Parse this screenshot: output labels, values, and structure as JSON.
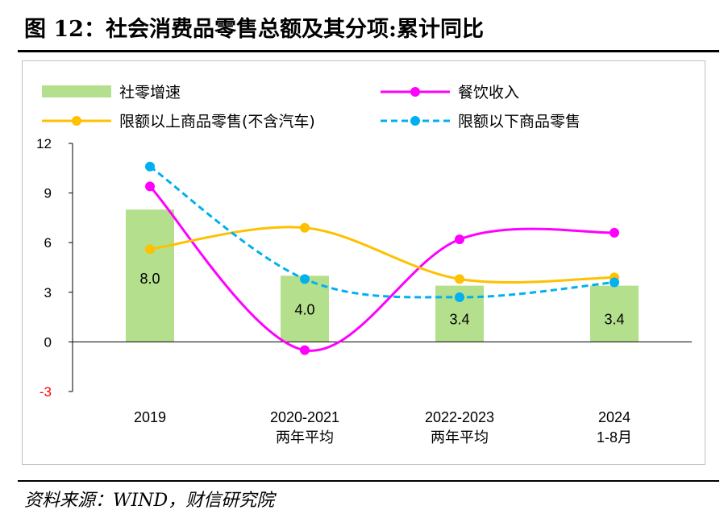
{
  "title": "图 12：社会消费品零售总额及其分项:累计同比",
  "source": "资料来源：WIND，财信研究院",
  "chart_data": {
    "type": "bar+line",
    "categories": [
      [
        "2019"
      ],
      [
        "2020-2021",
        "两年平均"
      ],
      [
        "2022-2023",
        "两年平均"
      ],
      [
        "2024",
        "1-8月"
      ]
    ],
    "ylim": [
      -3,
      12
    ],
    "yticks": [
      12,
      9,
      6,
      3,
      0,
      -3
    ],
    "grid": false,
    "legend": "top",
    "bar_series": {
      "name": "社零增速",
      "values": [
        8.0,
        4.0,
        3.4,
        3.4
      ],
      "labels": [
        "8.0",
        "4.0",
        "3.4",
        "3.4"
      ],
      "color": "#b4df8c"
    },
    "series": [
      {
        "name": "餐饮收入",
        "values": [
          9.4,
          -0.5,
          6.2,
          6.6
        ],
        "color": "#ff00ff",
        "style": "solid"
      },
      {
        "name": "限额以上商品零售(不含汽车)",
        "values": [
          5.6,
          6.9,
          3.8,
          3.9
        ],
        "color": "#ffc000",
        "style": "solid"
      },
      {
        "name": "限额以下商品零售",
        "values": [
          10.6,
          3.8,
          2.7,
          3.6
        ],
        "color": "#00b0f0",
        "style": "dashed"
      }
    ],
    "negative_tick_color": "#ff0000"
  }
}
